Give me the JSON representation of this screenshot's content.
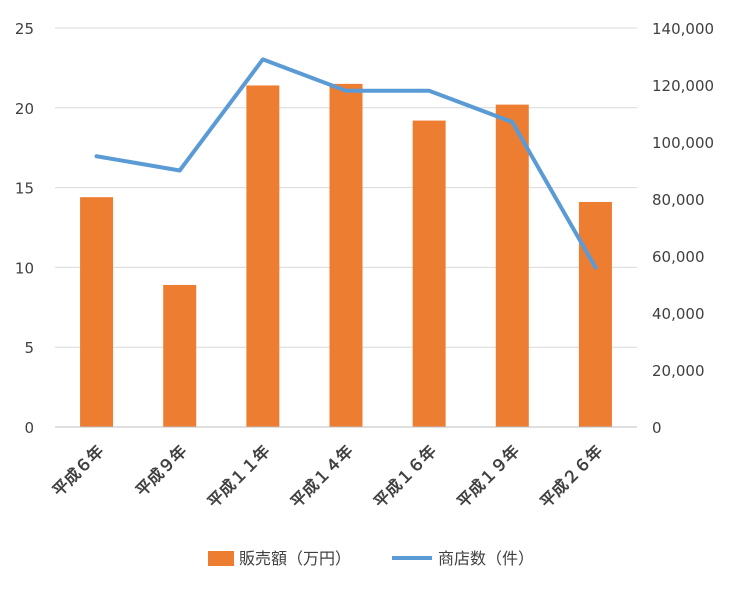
{
  "chart_data": {
    "type": "bar",
    "categories": [
      "平成６年",
      "平成９年",
      "平成１１年",
      "平成１４年",
      "平成１６年",
      "平成１９年",
      "平成２６年"
    ],
    "series": [
      {
        "name": "販売額（万円）",
        "type": "bar",
        "axis": "left",
        "color": "#ED7D31",
        "values": [
          14.4,
          8.9,
          21.4,
          21.5,
          19.2,
          20.2,
          14.1
        ]
      },
      {
        "name": "商店数（件）",
        "type": "line",
        "axis": "right",
        "color": "#5B9BD5",
        "values": [
          95000,
          90000,
          129000,
          118000,
          118000,
          107000,
          56000
        ]
      }
    ],
    "y_left": {
      "min": 0,
      "max": 25,
      "ticks": [
        "0",
        "5",
        "10",
        "15",
        "20",
        "25"
      ]
    },
    "y_right": {
      "min": 0,
      "max": 140000,
      "ticks": [
        "0",
        "20,000",
        "40,000",
        "60,000",
        "80,000",
        "100,000",
        "120,000",
        "140,000"
      ]
    },
    "grid": true,
    "legend_position": "bottom"
  }
}
